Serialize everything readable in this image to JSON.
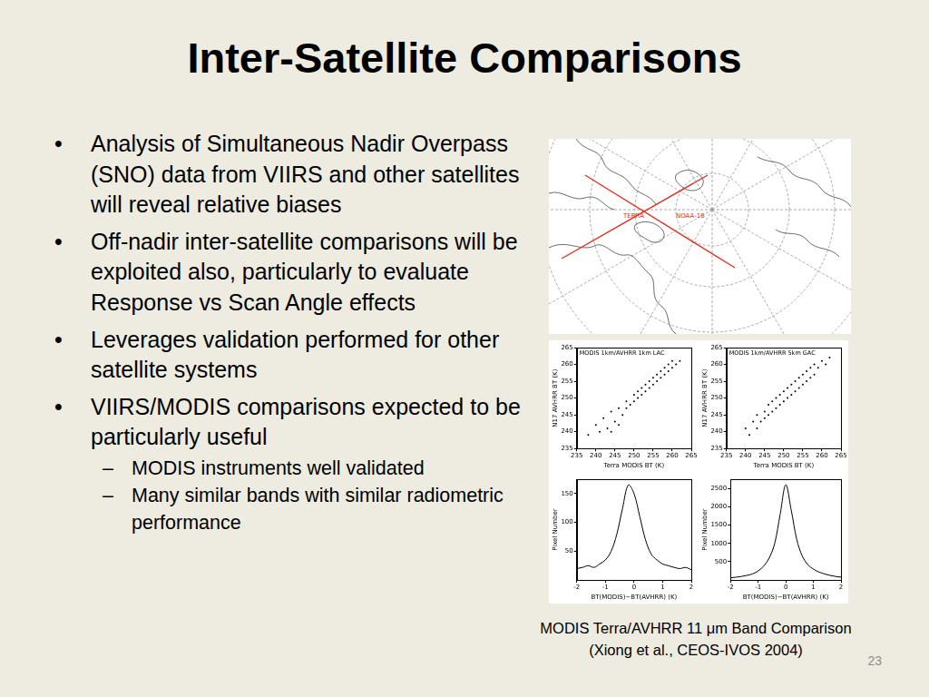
{
  "slide": {
    "title": "Inter-Satellite Comparisons",
    "bullets": [
      {
        "text": "Analysis of Simultaneous Nadir Overpass (SNO) data from VIIRS and other satellites will reveal relative biases"
      },
      {
        "text": "Off-nadir inter-satellite comparisons will be exploited also, particularly to evaluate Response vs Scan Angle effects"
      },
      {
        "text": "Leverages validation performed for other satellite systems"
      },
      {
        "text": "VIIRS/MODIS comparisons expected to be particularly useful",
        "sub": [
          "MODIS instruments well validated",
          "Many similar bands with similar radiometric performance"
        ]
      }
    ],
    "figure_caption": [
      "MODIS Terra/AVHRR 11 μm Band Comparison",
      "(Xiong et al., CEOS-IVOS 2004)"
    ],
    "page_number": 23
  },
  "map": {
    "labels": [
      "TERRA",
      "NOAA-16"
    ]
  },
  "chart_data": [
    {
      "type": "scatter",
      "title": "MODIS 1km/AVHRR 1km LAC",
      "x_label": "Terra MODIS BT (K)",
      "y_label": "N17 AVHRR BT (K)",
      "x": [
        238,
        240,
        241,
        242,
        243,
        244,
        245,
        246,
        247,
        248,
        248,
        249,
        250,
        250,
        251,
        251,
        252,
        252,
        253,
        253,
        254,
        254,
        255,
        255,
        256,
        256,
        257,
        257,
        258,
        258,
        259,
        259,
        260,
        260,
        261,
        262,
        244,
        246
      ],
      "values": [
        239,
        242,
        240,
        244,
        241,
        246,
        243,
        247,
        245,
        249,
        247,
        248,
        251,
        249,
        250,
        252,
        251,
        253,
        252,
        254,
        253,
        255,
        254,
        256,
        255,
        257,
        256,
        258,
        257,
        259,
        258,
        260,
        259,
        261,
        260,
        261,
        240,
        242
      ],
      "color": "#000000",
      "marker": "dot",
      "xlim": [
        235,
        265
      ],
      "xticks": [
        235,
        240,
        245,
        250,
        255,
        260,
        265
      ],
      "ylim": [
        235,
        265
      ],
      "yticks": [
        235,
        240,
        245,
        250,
        255,
        260,
        265
      ],
      "grid": false
    },
    {
      "type": "scatter",
      "title": "MODIS 1km/AVHRR 5km GAC",
      "x_label": "Terra MODIS BT (K)",
      "y_label": "N17 AVHRR BT (K)",
      "x": [
        240,
        241,
        242,
        243,
        243,
        244,
        245,
        245,
        246,
        246,
        247,
        247,
        248,
        248,
        249,
        249,
        250,
        250,
        251,
        251,
        252,
        252,
        253,
        253,
        254,
        254,
        255,
        255,
        256,
        256,
        257,
        257,
        258,
        258,
        259,
        260,
        261,
        262
      ],
      "values": [
        241,
        239,
        243,
        241,
        245,
        243,
        246,
        244,
        248,
        245,
        249,
        246,
        250,
        247,
        251,
        248,
        252,
        249,
        253,
        250,
        254,
        251,
        255,
        252,
        256,
        253,
        257,
        254,
        258,
        255,
        259,
        256,
        260,
        257,
        259,
        261,
        260,
        262
      ],
      "color": "#000000",
      "marker": "dot",
      "xlim": [
        235,
        265
      ],
      "xticks": [
        235,
        240,
        245,
        250,
        255,
        260,
        265
      ],
      "ylim": [
        235,
        265
      ],
      "yticks": [
        235,
        240,
        245,
        250,
        255,
        260,
        265
      ],
      "grid": false
    },
    {
      "type": "line",
      "x_label": "BT(MODIS)−BT(AVHRR) (K)",
      "y_label": "Pixel Number",
      "x": [
        -2,
        -1.8,
        -1.6,
        -1.4,
        -1.2,
        -1,
        -0.8,
        -0.6,
        -0.4,
        -0.2,
        0,
        0.2,
        0.4,
        0.6,
        0.8,
        1,
        1.2,
        1.4,
        1.6,
        1.8,
        2
      ],
      "values": [
        20,
        22,
        25,
        22,
        28,
        35,
        50,
        80,
        125,
        165,
        150,
        110,
        70,
        45,
        35,
        28,
        25,
        22,
        20,
        22,
        18
      ],
      "color": "#000000",
      "xlim": [
        -2,
        2
      ],
      "xticks": [
        -2,
        -1,
        0,
        1,
        2
      ],
      "ylim": [
        0,
        175
      ],
      "yticks": [
        50,
        100,
        150
      ],
      "grid": false
    },
    {
      "type": "line",
      "x_label": "BT(MODIS)−BT(AVHRR) (K)",
      "y_label": "Pixel Number",
      "x": [
        -2,
        -1.8,
        -1.6,
        -1.4,
        -1.2,
        -1,
        -0.8,
        -0.6,
        -0.4,
        -0.2,
        0,
        0.2,
        0.4,
        0.6,
        0.8,
        1,
        1.2,
        1.4,
        1.6,
        1.8,
        2
      ],
      "values": [
        60,
        80,
        100,
        130,
        170,
        250,
        380,
        600,
        1000,
        1800,
        2600,
        1900,
        1100,
        650,
        420,
        300,
        220,
        170,
        130,
        100,
        80
      ],
      "color": "#000000",
      "xlim": [
        -2,
        2
      ],
      "xticks": [
        -2,
        -1,
        0,
        1,
        2
      ],
      "ylim": [
        0,
        2750
      ],
      "yticks": [
        500,
        1000,
        1500,
        2000,
        2500
      ],
      "grid": false
    }
  ]
}
